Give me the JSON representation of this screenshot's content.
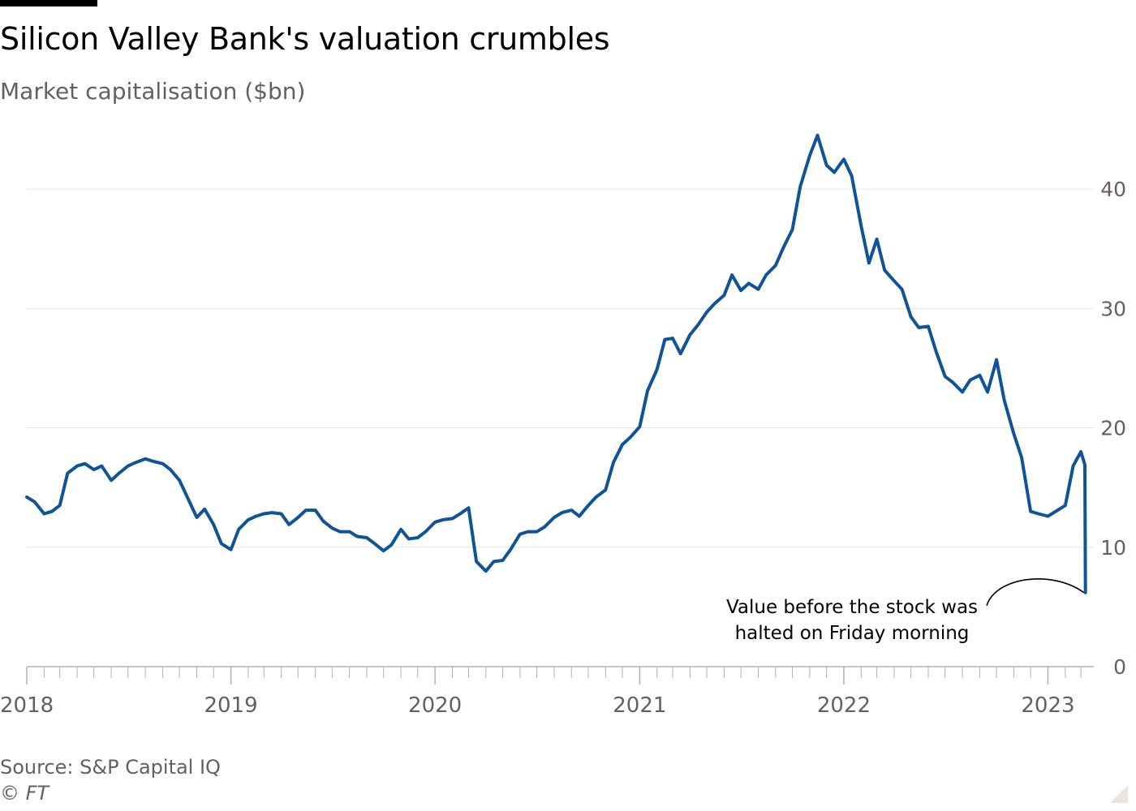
{
  "chart_data": {
    "type": "line",
    "title": "Silicon Valley Bank's valuation crumbles",
    "subtitle": "Market capitalisation ($bn)",
    "xlabel": "",
    "ylabel": "",
    "ylim": [
      0,
      47
    ],
    "xlim": [
      "2018-01-01",
      "2023-03-24"
    ],
    "y_ticks": [
      "0",
      "10",
      "20",
      "30",
      "40"
    ],
    "x_ticks": [
      "2018",
      "2019",
      "2020",
      "2021",
      "2022",
      "2023"
    ],
    "y_axis_side": "right",
    "grid": true,
    "legend": "none",
    "series": [
      {
        "color": "#0f5499",
        "x": [
          "2018-01-01",
          "2018-01-15",
          "2018-02-01",
          "2018-02-15",
          "2018-03-01",
          "2018-03-15",
          "2018-04-01",
          "2018-04-15",
          "2018-05-01",
          "2018-05-15",
          "2018-06-01",
          "2018-06-15",
          "2018-07-01",
          "2018-07-15",
          "2018-08-01",
          "2018-08-15",
          "2018-09-01",
          "2018-09-15",
          "2018-10-01",
          "2018-10-15",
          "2018-11-01",
          "2018-11-15",
          "2018-12-01",
          "2018-12-15",
          "2019-01-01",
          "2019-01-15",
          "2019-02-01",
          "2019-02-15",
          "2019-03-01",
          "2019-03-15",
          "2019-04-01",
          "2019-04-15",
          "2019-05-01",
          "2019-05-15",
          "2019-06-01",
          "2019-06-15",
          "2019-07-01",
          "2019-07-15",
          "2019-08-01",
          "2019-08-15",
          "2019-09-01",
          "2019-09-15",
          "2019-10-01",
          "2019-10-15",
          "2019-11-01",
          "2019-11-15",
          "2019-12-01",
          "2019-12-15",
          "2020-01-01",
          "2020-01-15",
          "2020-02-01",
          "2020-02-15",
          "2020-03-01",
          "2020-03-15",
          "2020-04-01",
          "2020-04-15",
          "2020-05-01",
          "2020-05-15",
          "2020-06-01",
          "2020-06-15",
          "2020-07-01",
          "2020-07-15",
          "2020-08-01",
          "2020-08-15",
          "2020-09-01",
          "2020-09-15",
          "2020-10-01",
          "2020-10-15",
          "2020-11-01",
          "2020-11-15",
          "2020-12-01",
          "2020-12-15",
          "2021-01-01",
          "2021-01-15",
          "2021-02-01",
          "2021-02-15",
          "2021-03-01",
          "2021-03-15",
          "2021-04-01",
          "2021-04-15",
          "2021-05-01",
          "2021-05-15",
          "2021-06-01",
          "2021-06-15",
          "2021-07-01",
          "2021-07-15",
          "2021-08-01",
          "2021-08-15",
          "2021-09-01",
          "2021-09-15",
          "2021-10-01",
          "2021-10-15",
          "2021-11-01",
          "2021-11-15",
          "2021-12-01",
          "2021-12-15",
          "2022-01-01",
          "2022-01-15",
          "2022-02-01",
          "2022-02-15",
          "2022-03-01",
          "2022-03-15",
          "2022-04-01",
          "2022-04-15",
          "2022-05-01",
          "2022-05-15",
          "2022-06-01",
          "2022-06-15",
          "2022-07-01",
          "2022-07-15",
          "2022-08-01",
          "2022-08-15",
          "2022-09-01",
          "2022-09-15",
          "2022-10-01",
          "2022-10-15",
          "2022-11-01",
          "2022-11-15",
          "2022-12-01",
          "2022-12-15",
          "2023-01-01",
          "2023-01-15",
          "2023-02-01",
          "2023-02-15",
          "2023-03-01",
          "2023-03-08",
          "2023-03-09"
        ],
        "values": [
          14.2,
          13.8,
          12.8,
          13.0,
          13.5,
          16.2,
          16.8,
          17.0,
          16.5,
          16.8,
          15.6,
          16.2,
          16.8,
          17.1,
          17.4,
          17.2,
          17.0,
          16.5,
          15.6,
          14.2,
          12.5,
          13.2,
          11.9,
          10.3,
          9.8,
          11.5,
          12.3,
          12.6,
          12.8,
          12.9,
          12.8,
          11.9,
          12.5,
          13.1,
          13.1,
          12.2,
          11.6,
          11.3,
          11.3,
          10.9,
          10.8,
          10.3,
          9.7,
          10.2,
          11.5,
          10.7,
          10.8,
          11.3,
          12.1,
          12.3,
          12.4,
          12.8,
          13.3,
          8.8,
          8.0,
          8.8,
          8.9,
          9.8,
          11.1,
          11.3,
          11.3,
          11.7,
          12.5,
          12.9,
          13.1,
          12.6,
          13.5,
          14.2,
          14.8,
          17.1,
          18.6,
          19.2,
          20.1,
          23.1,
          24.9,
          27.4,
          27.5,
          26.2,
          27.8,
          28.6,
          29.7,
          30.4,
          31.1,
          32.8,
          31.5,
          32.1,
          31.6,
          32.8,
          33.6,
          35.1,
          36.6,
          40.2,
          42.8,
          44.5,
          42.0,
          41.4,
          42.5,
          41.1,
          36.9,
          33.8,
          35.8,
          33.2,
          32.3,
          31.6,
          29.3,
          28.4,
          28.5,
          26.4,
          24.3,
          23.8,
          23.0,
          24.0,
          24.4,
          23.0,
          25.7,
          22.3,
          19.5,
          17.5,
          13.0,
          12.8,
          12.6,
          13.0,
          13.5,
          16.8,
          18.0,
          16.9,
          6.2
        ],
        "annotation": "Value before the stock was halted on Friday morning"
      }
    ]
  },
  "header": {
    "title": "Silicon Valley Bank's valuation crumbles",
    "subtitle": "Market capitalisation ($bn)"
  },
  "annotation": {
    "line1": "Value before the stock was",
    "line2": "halted on Friday morning"
  },
  "footer": {
    "source": "Source: S&P Capital IQ",
    "copyright": "© FT"
  },
  "colors": {
    "line": "#0f5499",
    "grid": "#e6e6e6",
    "axis": "#b3b3b3",
    "muted_text": "#66605c",
    "background": "#ffffff"
  }
}
